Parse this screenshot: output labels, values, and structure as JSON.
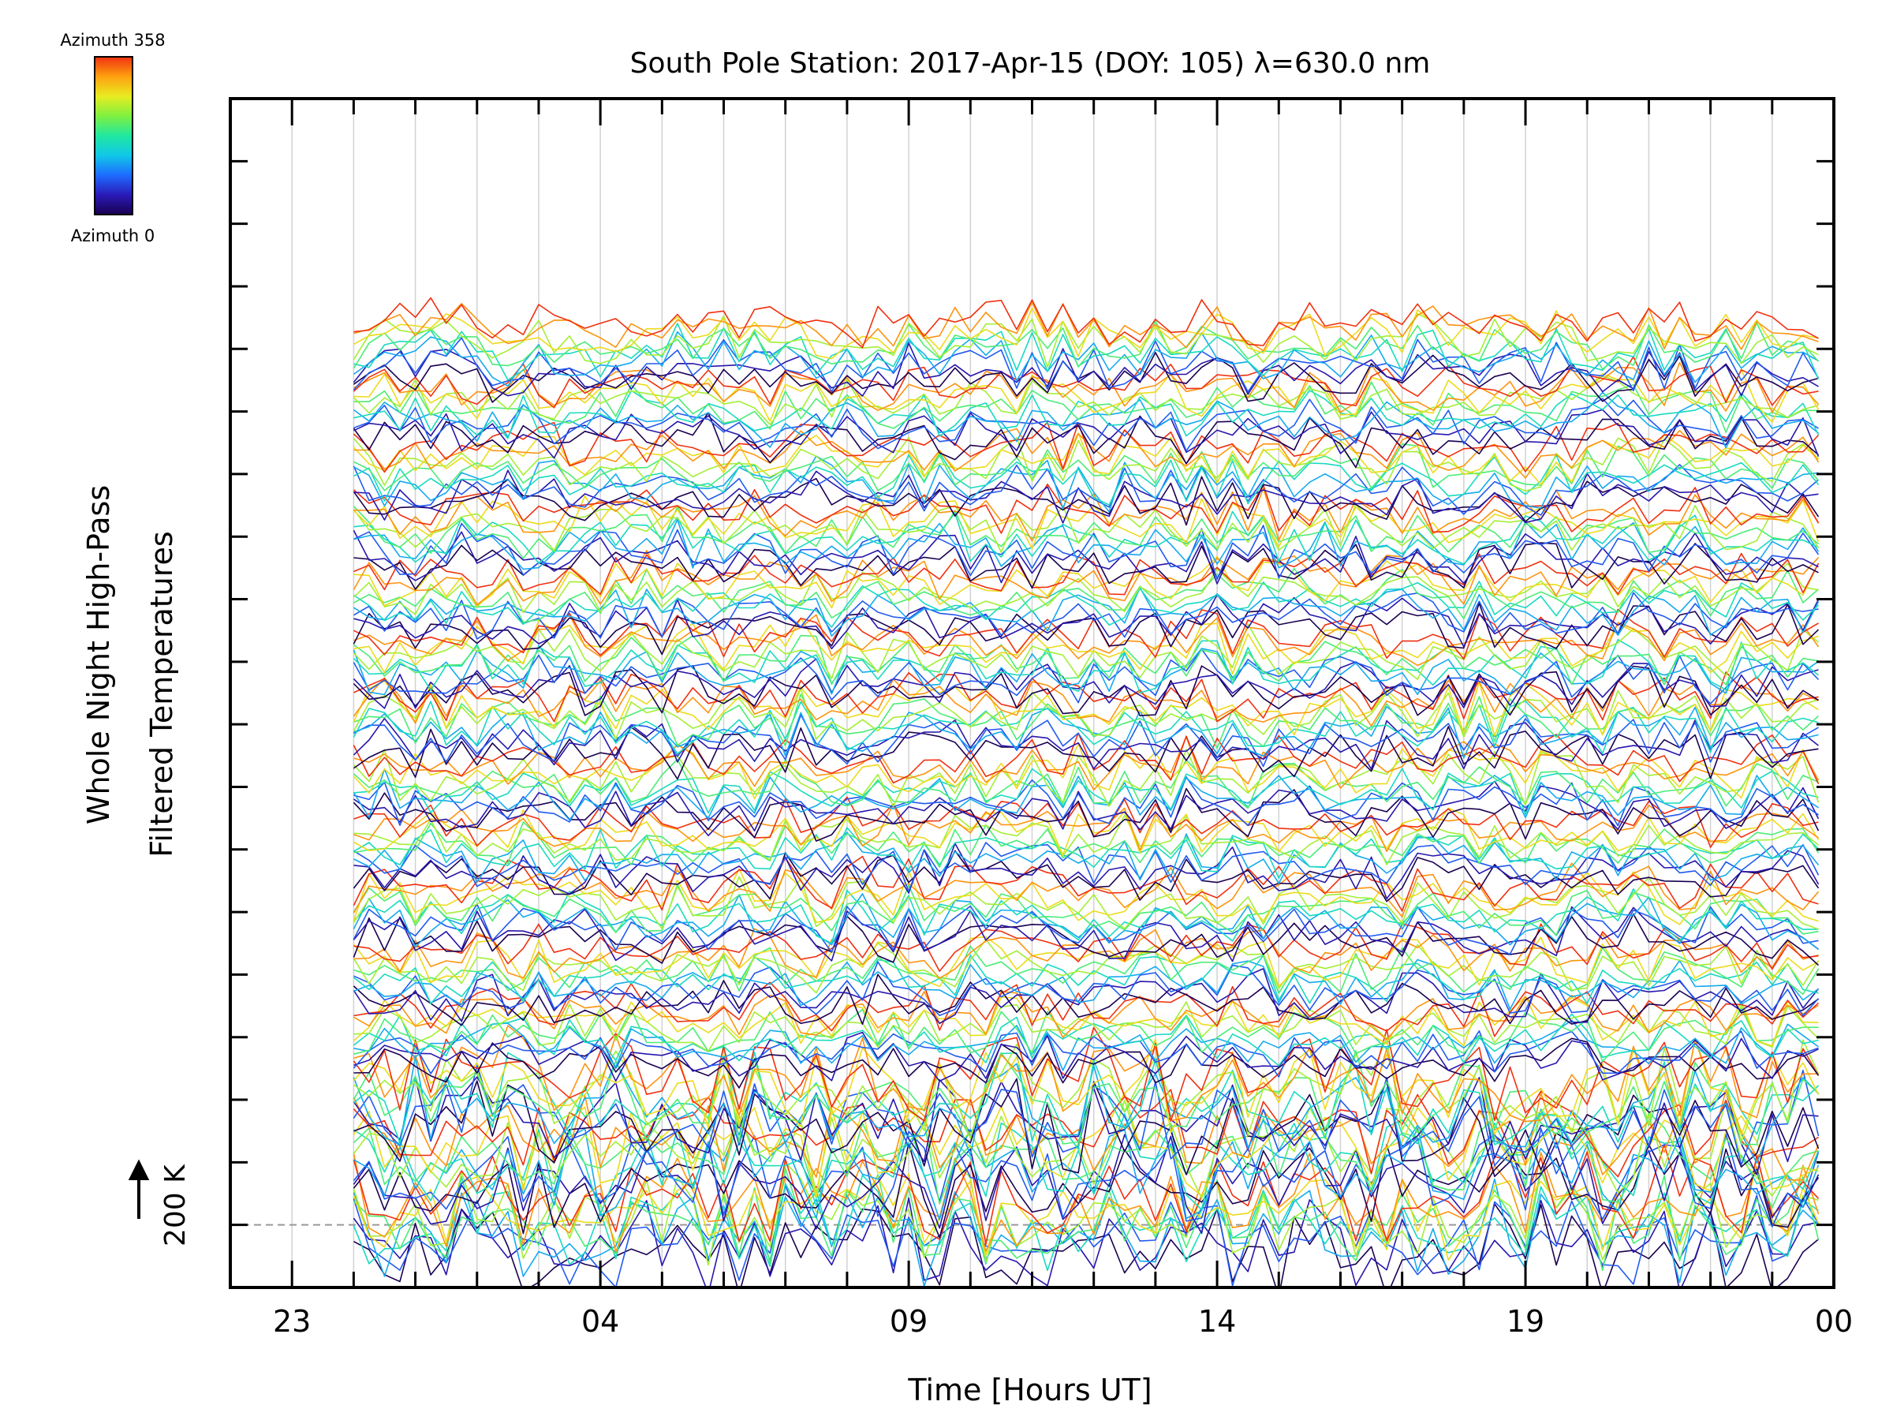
{
  "chart_data": {
    "type": "line",
    "title": "South Pole Station: 2017-Apr-15 (DOY: 105) λ=630.0 nm",
    "xlabel": "Time [Hours UT]",
    "ylabel_line1": "Whole Night High-Pass",
    "ylabel_line2": "Filtered Temperatures",
    "scale_marker": "200 K",
    "x_tick_labels": [
      "23",
      "04",
      "09",
      "14",
      "19",
      "00"
    ],
    "x_tick_values": [
      23,
      28,
      33,
      38,
      43,
      48
    ],
    "x_range": [
      22,
      48
    ],
    "y_range": [
      -1,
      18
    ],
    "baseline_row": 0,
    "n_rows": 15,
    "traces_per_row": 10,
    "time_start": 24,
    "time_end": 47.8,
    "time_step": 0.25,
    "row_spacing": 1,
    "colorbar": {
      "label_top": "Azimuth  358",
      "label_bottom": "Azimuth  0",
      "azimuth_min": 0,
      "azimuth_max": 358,
      "colors": [
        "#1a0050",
        "#2a1ab8",
        "#1e6cff",
        "#10c8e8",
        "#20e8a0",
        "#80f040",
        "#e8ec20",
        "#ffa010",
        "#f03010"
      ]
    }
  }
}
